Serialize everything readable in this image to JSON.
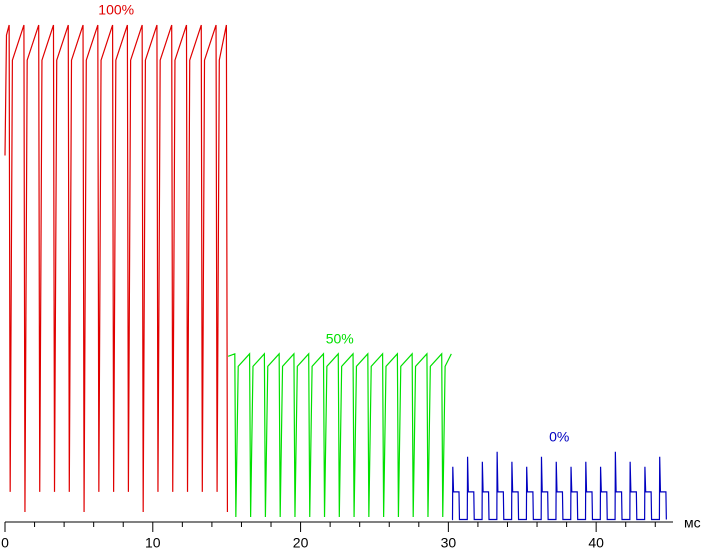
{
  "chart_data": {
    "type": "line",
    "x_label": "мс",
    "xlim": [
      0,
      45.2
    ],
    "ylim": [
      0,
      100
    ],
    "xticks": [
      0,
      10,
      20,
      30,
      40
    ],
    "xminorticks": [
      2,
      4,
      6,
      8,
      12,
      14,
      16,
      18,
      22,
      24,
      26,
      28,
      32,
      34,
      36,
      38,
      42,
      44
    ],
    "series": [
      {
        "name": "100%",
        "color": "#e00000",
        "x": [
          0,
          0.1,
          0.28,
          0.35,
          0.5,
          1.28,
          1.35,
          1.5,
          2.28,
          2.35,
          2.5,
          3.28,
          3.35,
          3.5,
          4.28,
          4.35,
          4.5,
          5.28,
          5.35,
          5.5,
          6.28,
          6.35,
          6.5,
          7.28,
          7.35,
          7.5,
          8.28,
          8.35,
          8.5,
          9.28,
          9.35,
          9.5,
          10.28,
          10.35,
          10.5,
          11.28,
          11.35,
          11.5,
          12.28,
          12.35,
          12.5,
          13.28,
          13.35,
          13.5,
          14.28,
          14.35,
          14.5,
          14.98,
          15.05
        ],
        "values": [
          73,
          97,
          99,
          6,
          92,
          99,
          2,
          92,
          99,
          6,
          92,
          99,
          6,
          92,
          99,
          6,
          92,
          99,
          2,
          92,
          99,
          6,
          92,
          99,
          6,
          92,
          99,
          6,
          92,
          99,
          2,
          92,
          99,
          6,
          92,
          99,
          6,
          92,
          99,
          6,
          92,
          99,
          6,
          92,
          99,
          6,
          92,
          99,
          2
        ]
      },
      {
        "name": "50%",
        "color": "#00e000",
        "x": [
          15.1,
          15.55,
          15.62,
          15.78,
          16.55,
          16.62,
          16.78,
          17.55,
          17.62,
          17.78,
          18.55,
          18.62,
          18.78,
          19.55,
          19.62,
          19.78,
          20.55,
          20.62,
          20.78,
          21.55,
          21.62,
          21.78,
          22.55,
          22.62,
          22.78,
          23.55,
          23.62,
          23.78,
          24.55,
          24.62,
          24.78,
          25.55,
          25.62,
          25.78,
          26.55,
          26.62,
          26.78,
          27.55,
          27.62,
          27.78,
          28.55,
          28.62,
          28.78,
          29.55,
          29.62,
          29.78,
          30.2
        ],
        "values": [
          33,
          33.5,
          1,
          31,
          33.5,
          1,
          31,
          33.5,
          1,
          31,
          33.5,
          1,
          31,
          33.5,
          1,
          31,
          33.5,
          1,
          31,
          33.5,
          1,
          31,
          33.5,
          1,
          31,
          33.5,
          1,
          31,
          33.5,
          1,
          31,
          33.5,
          1,
          31,
          33.5,
          1,
          31,
          33.5,
          1,
          31,
          33.5,
          1,
          31,
          33.5,
          1,
          31,
          33.5
        ]
      },
      {
        "name": "0%",
        "color": "#0000c0",
        "x": [
          30.25,
          30.28,
          30.3,
          30.35,
          30.72,
          30.75,
          31.28,
          31.3,
          31.35,
          31.72,
          31.75,
          32.28,
          32.3,
          32.35,
          32.72,
          32.75,
          33.28,
          33.3,
          33.35,
          33.72,
          33.75,
          34.28,
          34.3,
          34.35,
          34.72,
          34.75,
          35.28,
          35.3,
          35.35,
          35.72,
          35.75,
          36.28,
          36.3,
          36.35,
          36.72,
          36.75,
          37.28,
          37.3,
          37.35,
          37.72,
          37.75,
          38.28,
          38.3,
          38.35,
          38.72,
          38.75,
          39.28,
          39.3,
          39.35,
          39.72,
          39.75,
          40.28,
          40.3,
          40.35,
          40.72,
          40.75,
          41.28,
          41.3,
          41.35,
          41.72,
          41.75,
          42.28,
          42.3,
          42.35,
          42.72,
          42.75,
          43.28,
          43.3,
          43.35,
          43.72,
          43.75,
          44.28,
          44.3,
          44.35,
          44.72,
          44.75
        ],
        "values": [
          0.5,
          0.5,
          11,
          6,
          6,
          0.5,
          0.5,
          13,
          6,
          6,
          0.5,
          0.5,
          12,
          6,
          6,
          0.5,
          0.5,
          14,
          6,
          6,
          0.5,
          0.5,
          12,
          6,
          6,
          0.5,
          0.5,
          11,
          6,
          6,
          0.5,
          0.5,
          13,
          6,
          6,
          0.5,
          0.5,
          12,
          6,
          6,
          0.5,
          0.5,
          11,
          6,
          6,
          0.5,
          0.5,
          12,
          6,
          6,
          0.5,
          0.5,
          11,
          6,
          6,
          0.5,
          0.5,
          14,
          6,
          6,
          0.5,
          0.5,
          12,
          6,
          6,
          0.5,
          0.5,
          11,
          6,
          6,
          0.5,
          0.5,
          13,
          6,
          6,
          0.5
        ]
      }
    ]
  }
}
